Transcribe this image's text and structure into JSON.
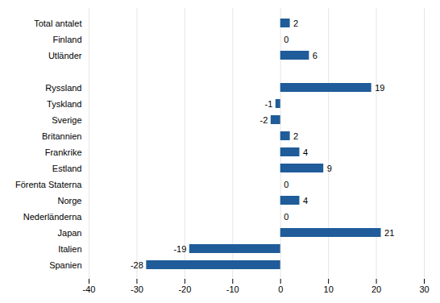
{
  "chart_data": {
    "type": "bar",
    "orientation": "horizontal",
    "categories": [
      "Spanien",
      "Italien",
      "Japan",
      "Nederländerna",
      "Norge",
      "Förenta Staterna",
      "Estland",
      "Frankrike",
      "Britannien",
      "Sverige",
      "Tyskland",
      "Ryssland",
      null,
      "Utländer",
      "Finland",
      "Total antalet"
    ],
    "values": [
      -28,
      -19,
      21,
      0,
      4,
      0,
      9,
      4,
      2,
      -2,
      -1,
      19,
      null,
      6,
      0,
      2
    ],
    "color": "#1F5C99",
    "xlim": [
      -40,
      30
    ],
    "xticks": [
      -40,
      -30,
      -20,
      -10,
      0,
      10,
      20,
      30
    ],
    "grid": true,
    "data_labels": true
  }
}
